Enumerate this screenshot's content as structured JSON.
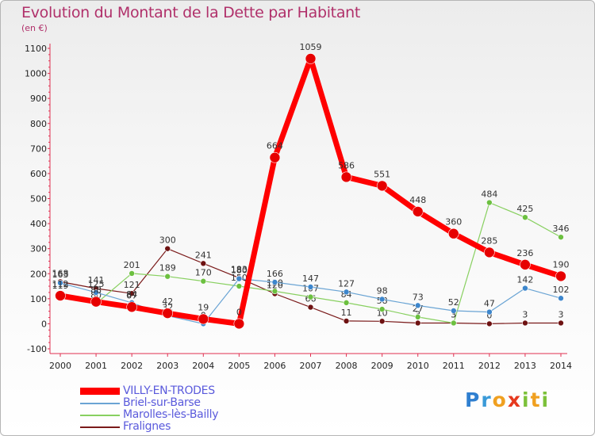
{
  "chart_data": {
    "type": "line",
    "title": "Evolution du Montant de la Dette par Habitant",
    "subtitle": "(en €)",
    "xlabel": "",
    "ylabel": "",
    "x": [
      "2000",
      "2001",
      "2002",
      "2003",
      "2004",
      "2005",
      "2006",
      "2007",
      "2008",
      "2009",
      "2010",
      "2011",
      "2012",
      "2013",
      "2014"
    ],
    "ylim": [
      -100,
      1100
    ],
    "yticks": [
      -100,
      0,
      100,
      200,
      300,
      400,
      500,
      600,
      700,
      800,
      900,
      1000,
      1100
    ],
    "grid": false,
    "legend_position": "bottom-left",
    "series": [
      {
        "name": "Fralignes",
        "color": "#7a1a1a",
        "marker_color": "#6e1212",
        "line_width": 1.2,
        "marker_radius": 3.5,
        "values": [
          168,
          141,
          121,
          300,
          241,
          183,
          120,
          66,
          11,
          10,
          3,
          3,
          0,
          3,
          3
        ],
        "labels": [
          "168",
          "141",
          "121",
          "300",
          "241",
          "183",
          "120",
          "66",
          "11",
          "10",
          "3",
          "3",
          "0",
          "3",
          "3"
        ]
      },
      {
        "name": "Marolles-lès-Bailly",
        "color": "#88d060",
        "marker_color": "#6cc040",
        "line_width": 1.2,
        "marker_radius": 3.5,
        "values": [
          119,
          80,
          201,
          189,
          170,
          150,
          130,
          107,
          84,
          58,
          27,
          3,
          484,
          425,
          346
        ],
        "labels": [
          "119",
          "80",
          "201",
          "189",
          "170",
          "150",
          "130",
          "107",
          "84",
          "58",
          "27",
          "3",
          "484",
          "425",
          "346"
        ]
      },
      {
        "name": "Briel-sur-Barse",
        "color": "#6aa4d4",
        "marker_color": "#3d86cc",
        "line_width": 1.2,
        "marker_radius": 3.5,
        "values": [
          163,
          125,
          84,
          32,
          0,
          180,
          166,
          147,
          127,
          98,
          73,
          52,
          47,
          142,
          102
        ],
        "labels": [
          "163",
          "125",
          "84",
          "32",
          "0",
          "180",
          "166",
          "147",
          "127",
          "98",
          "73",
          "52",
          "47",
          "142",
          "102"
        ]
      },
      {
        "name": "VILLY-EN-TRODES",
        "color": "#ff0000",
        "marker_color": "#e60000",
        "line_width": 7,
        "marker_radius": 6.5,
        "values": [
          112,
          88,
          67,
          42,
          19,
          0,
          664,
          1059,
          586,
          551,
          448,
          360,
          285,
          236,
          190
        ],
        "labels": [
          "112",
          "88",
          "67",
          "42",
          "19",
          "0",
          "664",
          "1059",
          "586",
          "551",
          "448",
          "360",
          "285",
          "236",
          "190"
        ]
      }
    ],
    "legend": [
      "VILLY-EN-TRODES",
      "Briel-sur-Barse",
      "Marolles-lès-Bailly",
      "Fralignes"
    ]
  },
  "legend_items": [
    {
      "label": "VILLY-EN-TRODES",
      "color": "#ff0000",
      "thickness": 9
    },
    {
      "label": "Briel-sur-Barse",
      "color": "#6aa4d4",
      "thickness": 2
    },
    {
      "label": "Marolles-lès-Bailly",
      "color": "#88d060",
      "thickness": 2
    },
    {
      "label": "Fralignes",
      "color": "#7a1a1a",
      "thickness": 2
    }
  ],
  "logo": {
    "p": "P",
    "r": "r",
    "o": "o",
    "x": "x",
    "i1": "i",
    "t": "t",
    "i2": "i"
  }
}
